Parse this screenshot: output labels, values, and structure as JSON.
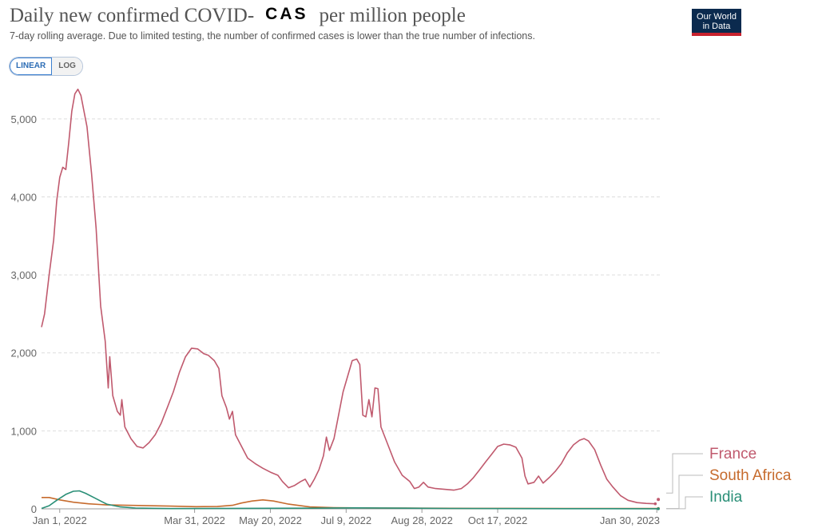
{
  "header": {
    "title_before": "Daily new confirmed COVID-",
    "title_overlay": "CAS",
    "title_after": "per million people",
    "subtitle": "7-day rolling average. Due to limited testing, the number of confirmed cases is lower than the true number of infections."
  },
  "logo": {
    "line1": "Our World",
    "line2": "in Data"
  },
  "scale_toggle": {
    "linear": "LINEAR",
    "log": "LOG",
    "selected": "LINEAR"
  },
  "chart_data": {
    "type": "line",
    "x_start": "2021-12-20",
    "x_end": "2023-02-01",
    "ylim": [
      0,
      5500
    ],
    "yticks": [
      0,
      1000,
      2000,
      3000,
      4000,
      5000
    ],
    "ytick_labels": [
      "0",
      "1,000",
      "2,000",
      "3,000",
      "4,000",
      "5,000"
    ],
    "xticks": [
      {
        "date": "2022-01-01",
        "label": "Jan 1, 2022"
      },
      {
        "date": "2022-03-31",
        "label": "Mar 31, 2022"
      },
      {
        "date": "2022-05-20",
        "label": "May 20, 2022"
      },
      {
        "date": "2022-07-09",
        "label": "Jul 9, 2022"
      },
      {
        "date": "2022-08-28",
        "label": "Aug 28, 2022"
      },
      {
        "date": "2022-10-17",
        "label": "Oct 17, 2022"
      },
      {
        "date": "2023-01-30",
        "label": "Jan 30, 2023"
      }
    ],
    "grid": "horizontal-dashed",
    "legend_position": "right-end-labels",
    "series": [
      {
        "name": "France",
        "color": "#c05a6e",
        "points": [
          [
            "2021-12-20",
            2330
          ],
          [
            "2021-12-22",
            2500
          ],
          [
            "2021-12-25",
            3000
          ],
          [
            "2021-12-28",
            3450
          ],
          [
            "2021-12-30",
            3950
          ],
          [
            "2022-01-01",
            4250
          ],
          [
            "2022-01-03",
            4380
          ],
          [
            "2022-01-05",
            4350
          ],
          [
            "2022-01-07",
            4700
          ],
          [
            "2022-01-09",
            5100
          ],
          [
            "2022-01-11",
            5320
          ],
          [
            "2022-01-13",
            5380
          ],
          [
            "2022-01-15",
            5300
          ],
          [
            "2022-01-17",
            5100
          ],
          [
            "2022-01-19",
            4900
          ],
          [
            "2022-01-22",
            4300
          ],
          [
            "2022-01-25",
            3600
          ],
          [
            "2022-01-28",
            2600
          ],
          [
            "2022-01-31",
            2150
          ],
          [
            "2022-02-02",
            1550
          ],
          [
            "2022-02-03",
            1950
          ],
          [
            "2022-02-05",
            1450
          ],
          [
            "2022-02-08",
            1250
          ],
          [
            "2022-02-10",
            1200
          ],
          [
            "2022-02-11",
            1400
          ],
          [
            "2022-02-13",
            1050
          ],
          [
            "2022-02-17",
            900
          ],
          [
            "2022-02-21",
            800
          ],
          [
            "2022-02-25",
            780
          ],
          [
            "2022-03-01",
            850
          ],
          [
            "2022-03-05",
            950
          ],
          [
            "2022-03-09",
            1100
          ],
          [
            "2022-03-13",
            1300
          ],
          [
            "2022-03-17",
            1500
          ],
          [
            "2022-03-21",
            1750
          ],
          [
            "2022-03-25",
            1950
          ],
          [
            "2022-03-29",
            2060
          ],
          [
            "2022-04-02",
            2050
          ],
          [
            "2022-04-06",
            1990
          ],
          [
            "2022-04-09",
            1970
          ],
          [
            "2022-04-13",
            1900
          ],
          [
            "2022-04-16",
            1800
          ],
          [
            "2022-04-18",
            1450
          ],
          [
            "2022-04-21",
            1300
          ],
          [
            "2022-04-23",
            1150
          ],
          [
            "2022-04-25",
            1250
          ],
          [
            "2022-04-27",
            950
          ],
          [
            "2022-05-01",
            800
          ],
          [
            "2022-05-05",
            650
          ],
          [
            "2022-05-10",
            580
          ],
          [
            "2022-05-15",
            520
          ],
          [
            "2022-05-20",
            470
          ],
          [
            "2022-05-25",
            430
          ],
          [
            "2022-05-28",
            350
          ],
          [
            "2022-06-01",
            270
          ],
          [
            "2022-06-05",
            300
          ],
          [
            "2022-06-09",
            350
          ],
          [
            "2022-06-12",
            380
          ],
          [
            "2022-06-15",
            280
          ],
          [
            "2022-06-18",
            380
          ],
          [
            "2022-06-21",
            500
          ],
          [
            "2022-06-24",
            680
          ],
          [
            "2022-06-26",
            920
          ],
          [
            "2022-06-28",
            750
          ],
          [
            "2022-07-01",
            900
          ],
          [
            "2022-07-04",
            1200
          ],
          [
            "2022-07-07",
            1500
          ],
          [
            "2022-07-10",
            1700
          ],
          [
            "2022-07-13",
            1900
          ],
          [
            "2022-07-16",
            1920
          ],
          [
            "2022-07-18",
            1850
          ],
          [
            "2022-07-20",
            1200
          ],
          [
            "2022-07-22",
            1180
          ],
          [
            "2022-07-24",
            1400
          ],
          [
            "2022-07-26",
            1180
          ],
          [
            "2022-07-28",
            1550
          ],
          [
            "2022-07-30",
            1540
          ],
          [
            "2022-08-01",
            1050
          ],
          [
            "2022-08-05",
            850
          ],
          [
            "2022-08-10",
            600
          ],
          [
            "2022-08-15",
            430
          ],
          [
            "2022-08-20",
            350
          ],
          [
            "2022-08-23",
            260
          ],
          [
            "2022-08-26",
            280
          ],
          [
            "2022-08-29",
            340
          ],
          [
            "2022-09-01",
            280
          ],
          [
            "2022-09-06",
            260
          ],
          [
            "2022-09-12",
            250
          ],
          [
            "2022-09-18",
            240
          ],
          [
            "2022-09-23",
            260
          ],
          [
            "2022-09-27",
            320
          ],
          [
            "2022-10-01",
            400
          ],
          [
            "2022-10-05",
            500
          ],
          [
            "2022-10-09",
            600
          ],
          [
            "2022-10-13",
            700
          ],
          [
            "2022-10-17",
            800
          ],
          [
            "2022-10-21",
            830
          ],
          [
            "2022-10-25",
            820
          ],
          [
            "2022-10-29",
            790
          ],
          [
            "2022-11-02",
            650
          ],
          [
            "2022-11-04",
            420
          ],
          [
            "2022-11-06",
            320
          ],
          [
            "2022-11-10",
            340
          ],
          [
            "2022-11-13",
            420
          ],
          [
            "2022-11-16",
            330
          ],
          [
            "2022-11-20",
            400
          ],
          [
            "2022-11-24",
            480
          ],
          [
            "2022-11-28",
            580
          ],
          [
            "2022-12-02",
            720
          ],
          [
            "2022-12-06",
            820
          ],
          [
            "2022-12-10",
            880
          ],
          [
            "2022-12-13",
            900
          ],
          [
            "2022-12-16",
            870
          ],
          [
            "2022-12-20",
            760
          ],
          [
            "2022-12-24",
            560
          ],
          [
            "2022-12-28",
            380
          ],
          [
            "2023-01-01",
            280
          ],
          [
            "2023-01-06",
            170
          ],
          [
            "2023-01-11",
            110
          ],
          [
            "2023-01-17",
            80
          ],
          [
            "2023-01-23",
            70
          ],
          [
            "2023-01-29",
            65
          ]
        ],
        "end_point": [
          "2023-01-31",
          120
        ]
      },
      {
        "name": "South Africa",
        "color": "#c66b2d",
        "points": [
          [
            "2021-12-20",
            145
          ],
          [
            "2021-12-25",
            145
          ],
          [
            "2022-01-01",
            115
          ],
          [
            "2022-01-10",
            85
          ],
          [
            "2022-01-20",
            65
          ],
          [
            "2022-02-01",
            50
          ],
          [
            "2022-02-15",
            45
          ],
          [
            "2022-03-01",
            40
          ],
          [
            "2022-03-15",
            35
          ],
          [
            "2022-04-01",
            28
          ],
          [
            "2022-04-15",
            30
          ],
          [
            "2022-04-25",
            45
          ],
          [
            "2022-05-01",
            75
          ],
          [
            "2022-05-08",
            100
          ],
          [
            "2022-05-15",
            115
          ],
          [
            "2022-05-22",
            100
          ],
          [
            "2022-06-01",
            60
          ],
          [
            "2022-06-15",
            25
          ],
          [
            "2022-07-01",
            15
          ],
          [
            "2022-08-01",
            10
          ],
          [
            "2022-10-01",
            6
          ],
          [
            "2022-12-01",
            5
          ],
          [
            "2023-01-31",
            4
          ]
        ]
      },
      {
        "name": "India",
        "color": "#2a8f77",
        "points": [
          [
            "2021-12-20",
            5
          ],
          [
            "2021-12-25",
            40
          ],
          [
            "2021-12-30",
            110
          ],
          [
            "2022-01-05",
            185
          ],
          [
            "2022-01-10",
            225
          ],
          [
            "2022-01-14",
            230
          ],
          [
            "2022-01-18",
            200
          ],
          [
            "2022-01-24",
            140
          ],
          [
            "2022-02-01",
            60
          ],
          [
            "2022-02-10",
            25
          ],
          [
            "2022-02-20",
            10
          ],
          [
            "2022-03-15",
            3
          ],
          [
            "2022-06-15",
            8
          ],
          [
            "2022-07-15",
            12
          ],
          [
            "2022-09-15",
            5
          ],
          [
            "2022-12-01",
            2
          ],
          [
            "2023-01-31",
            1
          ]
        ]
      }
    ]
  }
}
